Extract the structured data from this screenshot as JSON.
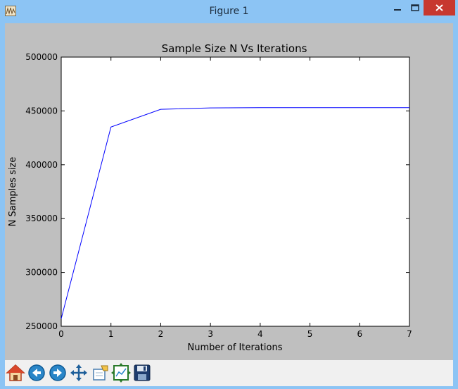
{
  "window": {
    "title": "Figure 1",
    "app_icon": "matplotlib-figure-icon",
    "controls": [
      "minimize-icon",
      "maximize-icon",
      "close-icon"
    ]
  },
  "chart_data": {
    "type": "line",
    "title": "Sample Size N Vs Iterations",
    "xlabel": "Number of Iterations",
    "ylabel": "N Samples size",
    "xlim": [
      0,
      7
    ],
    "ylim": [
      250000,
      500000
    ],
    "x_ticks": [
      "0",
      "1",
      "2",
      "3",
      "4",
      "5",
      "6",
      "7"
    ],
    "y_ticks": [
      "250000",
      "300000",
      "350000",
      "400000",
      "450000",
      "500000"
    ],
    "grid": false,
    "series": [
      {
        "color": "#0000ff",
        "x": [
          0,
          1,
          2,
          3,
          4,
          5,
          6,
          7
        ],
        "y": [
          257000,
          435000,
          451500,
          452800,
          453000,
          453000,
          453000,
          453000
        ]
      }
    ]
  },
  "toolbar": {
    "buttons": [
      "home-icon",
      "back-icon",
      "forward-icon",
      "pan-icon",
      "zoom-icon",
      "subplots-icon",
      "save-icon"
    ]
  },
  "colors": {
    "titlebar": "#8cc4f4",
    "figure_bg": "#bfbfbf",
    "close_button": "#c7382f",
    "line": "#0000ff"
  }
}
